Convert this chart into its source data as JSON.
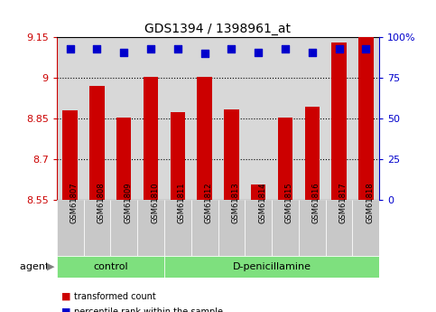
{
  "title": "GDS1394 / 1398961_at",
  "samples": [
    "GSM61807",
    "GSM61808",
    "GSM61809",
    "GSM61810",
    "GSM61811",
    "GSM61812",
    "GSM61813",
    "GSM61814",
    "GSM61815",
    "GSM61816",
    "GSM61817",
    "GSM61818"
  ],
  "red_values": [
    8.88,
    8.97,
    8.855,
    9.005,
    8.875,
    9.005,
    8.885,
    8.605,
    8.855,
    8.895,
    9.13,
    9.155
  ],
  "blue_values": [
    0.93,
    0.93,
    0.91,
    0.93,
    0.93,
    0.9,
    0.93,
    0.91,
    0.93,
    0.91,
    0.93,
    0.93
  ],
  "ylim_left": [
    8.55,
    9.15
  ],
  "yticks_left": [
    8.55,
    8.7,
    8.85,
    9.0,
    9.15
  ],
  "ytick_labels_left": [
    "8.55",
    "8.7",
    "8.85",
    "9",
    "9.15"
  ],
  "yticks_right": [
    0,
    25,
    50,
    75,
    100
  ],
  "ytick_labels_right": [
    "0",
    "25",
    "50",
    "75",
    "100%"
  ],
  "group_boundary": 4,
  "bar_color": "#CC0000",
  "dot_color": "#0000CC",
  "bar_bottom": 8.55,
  "bar_width": 0.55,
  "dot_size": 30,
  "plot_bg": "#D8D8D8",
  "sample_bg": "#C8C8C8",
  "green_color": "#7EE07E",
  "legend_items": [
    {
      "color": "#CC0000",
      "label": "transformed count"
    },
    {
      "color": "#0000CC",
      "label": "percentile rank within the sample"
    }
  ]
}
